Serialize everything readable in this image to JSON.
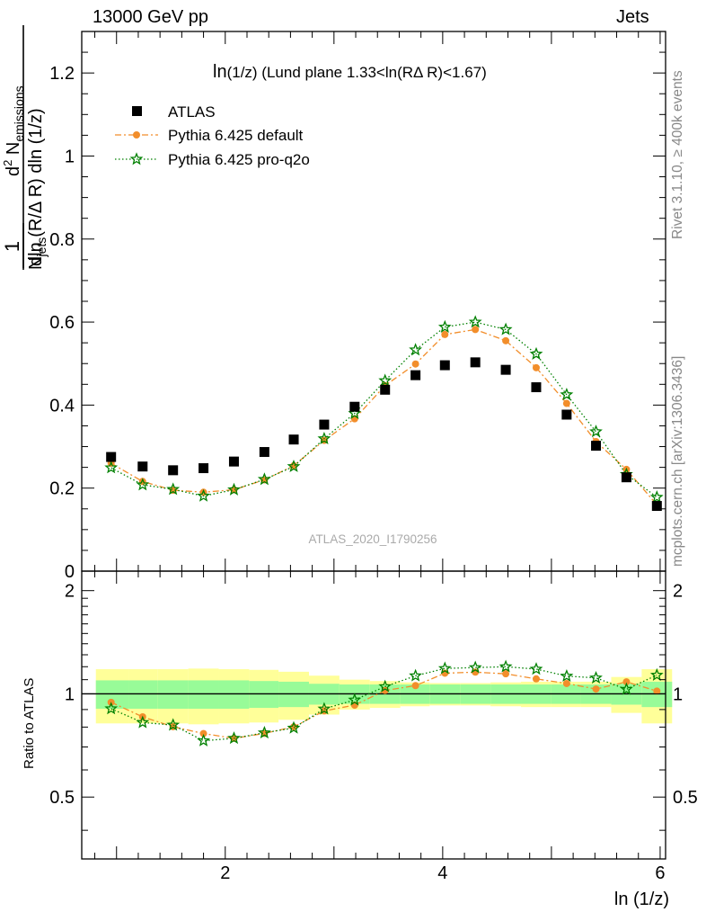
{
  "header": {
    "left": "13000 GeV pp",
    "right": "Jets"
  },
  "side_labels": {
    "rivet": "Rivet 3.1.10, ≥ 400k events",
    "mcplots": "mcplots.cern.ch [arXiv:1306.3436]"
  },
  "chart_data": {
    "type": "scatter",
    "title": "ln(1/z) (Lund plane 1.33<ln(RΔ R)<1.67)",
    "title_main": "ln",
    "title_sub": "(1/z)",
    "title_rest": " (Lund plane 1.33<ln(RΔ R)<1.67)",
    "analysis_label": "ATLAS_2020_I1790256",
    "xlabel": "ln (1/z)",
    "ylabel": "1/N_jets d²N_emissions / dln(R/ΔR) dln(1/z)",
    "ylabel_parts": {
      "frac_num": "1",
      "n_main": "N",
      "n_sub": "jets",
      "d2": "d",
      "d2_sup": "2",
      "num_n": " N",
      "num_sub": "emissions",
      "den": "dln (R/Δ R) dln (1/z)"
    },
    "xlim": [
      0.68,
      6.05
    ],
    "x_ticks": [
      "2",
      "4",
      "6"
    ],
    "top_panel": {
      "ylim": [
        0,
        1.3
      ],
      "y_ticks": [
        "0",
        "0.2",
        "0.4",
        "0.6",
        "0.8",
        "1",
        "1.2"
      ]
    },
    "ratio_panel": {
      "ylabel": "Ratio to ATLAS",
      "ylim": [
        0.33,
        2.28
      ],
      "log_scale": true,
      "y_ticks": [
        "0.5",
        "1",
        "2"
      ]
    },
    "legend_placement": "top-left",
    "bin_edges": [
      0.81,
      1.11,
      1.38,
      1.66,
      1.94,
      2.22,
      2.49,
      2.77,
      3.05,
      3.33,
      3.61,
      3.88,
      4.16,
      4.44,
      4.72,
      5.0,
      5.27,
      5.55,
      5.83
    ],
    "x": [
      0.95,
      1.24,
      1.52,
      1.8,
      2.08,
      2.36,
      2.63,
      2.91,
      3.19,
      3.47,
      3.75,
      4.02,
      4.3,
      4.58,
      4.86,
      5.14,
      5.41,
      5.69,
      5.97
    ],
    "series": [
      {
        "name": "ATLAS",
        "color": "#000000",
        "marker": "square",
        "values": [
          0.275,
          0.252,
          0.243,
          0.248,
          0.264,
          0.287,
          0.317,
          0.353,
          0.396,
          0.437,
          0.472,
          0.496,
          0.503,
          0.485,
          0.443,
          0.377,
          0.302,
          0.226,
          0.157
        ]
      },
      {
        "name": "Pythia 6.425 default",
        "color": "#f28e2b",
        "marker": "dot",
        "line": "dashdot",
        "values": [
          0.26,
          0.216,
          0.195,
          0.19,
          0.196,
          0.22,
          0.254,
          0.315,
          0.367,
          0.447,
          0.499,
          0.57,
          0.582,
          0.555,
          0.49,
          0.404,
          0.312,
          0.245,
          0.16
        ]
      },
      {
        "name": "Pythia 6.425 pro-q2o",
        "color": "#008000",
        "marker": "star",
        "line": "dotted",
        "values": [
          0.249,
          0.208,
          0.197,
          0.181,
          0.196,
          0.221,
          0.252,
          0.319,
          0.38,
          0.459,
          0.533,
          0.588,
          0.6,
          0.582,
          0.523,
          0.425,
          0.336,
          0.233,
          0.178
        ]
      }
    ],
    "ratio_series": [
      {
        "name": "Pythia 6.425 default",
        "values": [
          0.945,
          0.857,
          0.802,
          0.766,
          0.742,
          0.767,
          0.801,
          0.892,
          0.927,
          1.023,
          1.057,
          1.149,
          1.157,
          1.144,
          1.106,
          1.072,
          1.033,
          1.084,
          1.019
        ]
      },
      {
        "name": "Pythia 6.425 pro-q2o",
        "values": [
          0.905,
          0.825,
          0.811,
          0.73,
          0.742,
          0.77,
          0.795,
          0.904,
          0.96,
          1.05,
          1.129,
          1.186,
          1.193,
          1.2,
          1.181,
          1.127,
          1.113,
          1.031,
          1.134
        ]
      }
    ],
    "uncertainty_bands": {
      "stat_color": "#98fb98",
      "syst_color": "#ffff99",
      "inner_halfwidth": [
        0.095,
        0.095,
        0.095,
        0.095,
        0.095,
        0.09,
        0.085,
        0.07,
        0.065,
        0.065,
        0.065,
        0.065,
        0.065,
        0.065,
        0.065,
        0.065,
        0.065,
        0.07,
        0.085
      ],
      "outer_halfwidth": [
        0.18,
        0.18,
        0.18,
        0.185,
        0.18,
        0.175,
        0.16,
        0.13,
        0.1,
        0.09,
        0.08,
        0.075,
        0.075,
        0.08,
        0.085,
        0.085,
        0.085,
        0.12,
        0.18
      ]
    }
  }
}
